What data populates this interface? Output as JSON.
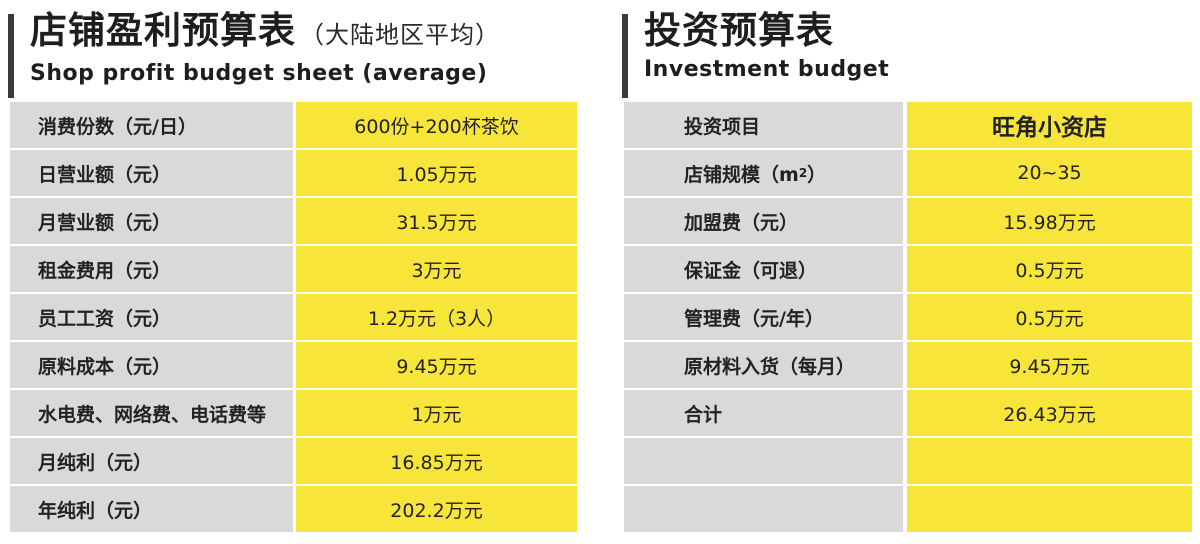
{
  "left": {
    "title_cn": "店铺盈利预算表",
    "title_note": "（大陆地区平均）",
    "title_en": "Shop profit budget sheet (average)",
    "rows": [
      {
        "label": "消费份数（元/日）",
        "value": "600份+200杯茶饮"
      },
      {
        "label": "日营业额（元）",
        "value": "1.05万元"
      },
      {
        "label": "月营业额（元）",
        "value": "31.5万元"
      },
      {
        "label": "租金费用（元）",
        "value": "3万元"
      },
      {
        "label": "员工工资（元）",
        "value": "1.2万元（3人）"
      },
      {
        "label": "原料成本（元）",
        "value": "9.45万元"
      },
      {
        "label": "水电费、网络费、电话费等",
        "value": "1万元"
      },
      {
        "label": "月纯利（元）",
        "value": "16.85万元"
      },
      {
        "label": "年纯利（元）",
        "value": "202.2万元"
      }
    ]
  },
  "right": {
    "title_cn": "投资预算表",
    "title_en": "Investment budget",
    "rows": [
      {
        "label": "投资项目",
        "value": "旺角小资店"
      },
      {
        "label_pre": "店铺规模（m",
        "label_sup": "2",
        "label_post": "）",
        "value": "20~35"
      },
      {
        "label": "加盟费（元）",
        "value": "15.98万元"
      },
      {
        "label": "保证金（可退）",
        "value": "0.5万元"
      },
      {
        "label": "管理费（元/年）",
        "value": "0.5万元"
      },
      {
        "label": "原材料入货（每月）",
        "value": "9.45万元"
      },
      {
        "label": "合计",
        "value": "26.43万元"
      },
      {
        "label": "",
        "value": ""
      },
      {
        "label": "",
        "value": ""
      }
    ]
  },
  "colors": {
    "label_bg": "#d9d9d9",
    "value_bg": "#f8e53a",
    "header_bar": "#3a3a3a"
  }
}
